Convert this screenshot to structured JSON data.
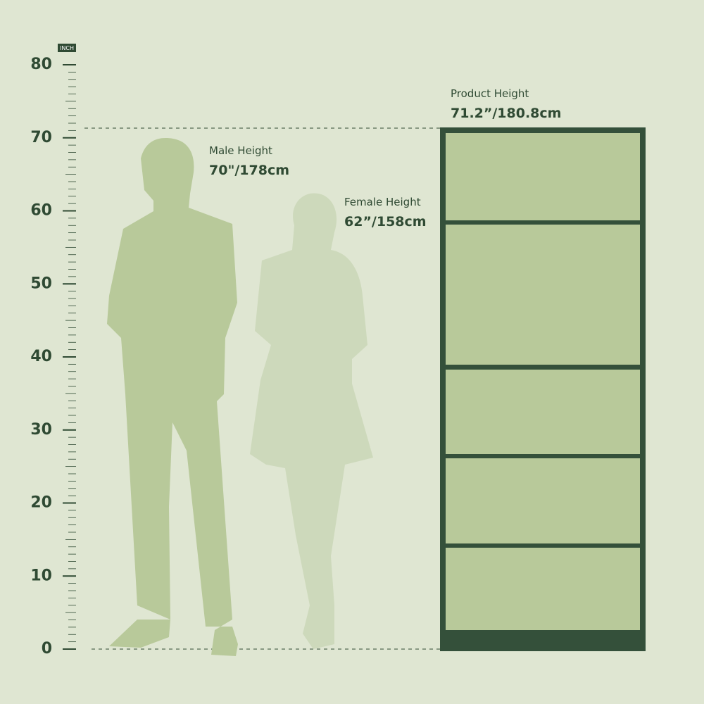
{
  "ruler": {
    "unit": "INCH",
    "ticks": [
      0,
      10,
      20,
      30,
      40,
      50,
      60,
      70,
      80
    ]
  },
  "male": {
    "label": "Male Height",
    "value": "70\"/178cm"
  },
  "female": {
    "label": "Female Height",
    "value": "62”/158cm"
  },
  "product": {
    "label": "Product Height",
    "value": "71.2”/180.8cm"
  }
}
